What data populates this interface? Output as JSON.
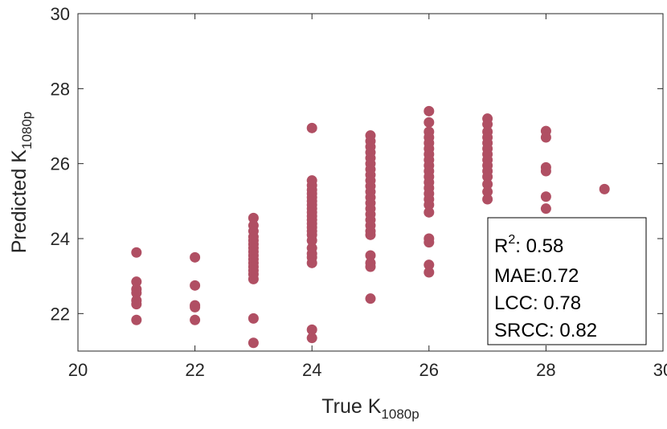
{
  "chart_data": {
    "type": "scatter",
    "xlabel": {
      "main": "True K",
      "sub": "1080p"
    },
    "ylabel": {
      "main": "Predicted K",
      "sub": "1080p"
    },
    "xlim": [
      20,
      30
    ],
    "ylim": [
      21,
      30
    ],
    "xticks": [
      "20",
      "22",
      "24",
      "26",
      "28",
      "30"
    ],
    "yticks": [
      "22",
      "24",
      "26",
      "28",
      "30"
    ],
    "grid": false,
    "marker_color": "#b04f63",
    "stats": {
      "r2_prefix": "R",
      "r2_sup": "2",
      "r2_value": ": 0.58",
      "mae": "MAE:0.72",
      "lcc": "LCC: 0.78",
      "srcc": "SRCC: 0.82"
    },
    "points": [
      [
        21,
        23.63
      ],
      [
        21,
        22.85
      ],
      [
        21,
        22.65
      ],
      [
        21,
        22.55
      ],
      [
        21,
        22.35
      ],
      [
        21,
        22.25
      ],
      [
        21,
        21.83
      ],
      [
        22,
        23.5
      ],
      [
        22,
        22.75
      ],
      [
        22,
        22.22
      ],
      [
        22,
        22.17
      ],
      [
        22,
        21.83
      ],
      [
        23,
        24.55
      ],
      [
        23,
        24.35
      ],
      [
        23,
        24.2
      ],
      [
        23,
        24.05
      ],
      [
        23,
        23.95
      ],
      [
        23,
        23.85
      ],
      [
        23,
        23.75
      ],
      [
        23,
        23.65
      ],
      [
        23,
        23.55
      ],
      [
        23,
        23.45
      ],
      [
        23,
        23.35
      ],
      [
        23,
        23.25
      ],
      [
        23,
        23.15
      ],
      [
        23,
        23.05
      ],
      [
        23,
        22.92
      ],
      [
        23,
        21.87
      ],
      [
        23,
        21.22
      ],
      [
        24,
        26.95
      ],
      [
        24,
        25.55
      ],
      [
        24,
        25.42
      ],
      [
        24,
        25.3
      ],
      [
        24,
        25.2
      ],
      [
        24,
        25.1
      ],
      [
        24,
        25.0
      ],
      [
        24,
        24.9
      ],
      [
        24,
        24.8
      ],
      [
        24,
        24.7
      ],
      [
        24,
        24.6
      ],
      [
        24,
        24.5
      ],
      [
        24,
        24.4
      ],
      [
        24,
        24.3
      ],
      [
        24,
        24.2
      ],
      [
        24,
        24.1
      ],
      [
        24,
        23.95
      ],
      [
        24,
        23.75
      ],
      [
        24,
        23.6
      ],
      [
        24,
        23.5
      ],
      [
        24,
        23.35
      ],
      [
        24,
        21.57
      ],
      [
        24,
        21.35
      ],
      [
        25,
        26.75
      ],
      [
        25,
        26.6
      ],
      [
        25,
        26.45
      ],
      [
        25,
        26.3
      ],
      [
        25,
        26.15
      ],
      [
        25,
        26.0
      ],
      [
        25,
        25.85
      ],
      [
        25,
        25.7
      ],
      [
        25,
        25.55
      ],
      [
        25,
        25.4
      ],
      [
        25,
        25.25
      ],
      [
        25,
        25.1
      ],
      [
        25,
        24.95
      ],
      [
        25,
        24.8
      ],
      [
        25,
        24.65
      ],
      [
        25,
        24.5
      ],
      [
        25,
        24.35
      ],
      [
        25,
        24.2
      ],
      [
        25,
        24.1
      ],
      [
        25,
        23.55
      ],
      [
        25,
        23.35
      ],
      [
        25,
        23.25
      ],
      [
        25,
        22.4
      ],
      [
        26,
        27.4
      ],
      [
        26,
        27.1
      ],
      [
        26,
        26.85
      ],
      [
        26,
        26.7
      ],
      [
        26,
        26.55
      ],
      [
        26,
        26.4
      ],
      [
        26,
        26.25
      ],
      [
        26,
        26.1
      ],
      [
        26,
        25.95
      ],
      [
        26,
        25.8
      ],
      [
        26,
        25.65
      ],
      [
        26,
        25.5
      ],
      [
        26,
        25.35
      ],
      [
        26,
        25.2
      ],
      [
        26,
        25.05
      ],
      [
        26,
        24.9
      ],
      [
        26,
        24.7
      ],
      [
        26,
        24.0
      ],
      [
        26,
        23.9
      ],
      [
        26,
        23.3
      ],
      [
        26,
        23.1
      ],
      [
        27,
        27.2
      ],
      [
        27,
        27.05
      ],
      [
        27,
        26.85
      ],
      [
        27,
        26.7
      ],
      [
        27,
        26.55
      ],
      [
        27,
        26.4
      ],
      [
        27,
        26.25
      ],
      [
        27,
        26.1
      ],
      [
        27,
        25.95
      ],
      [
        27,
        25.8
      ],
      [
        27,
        25.65
      ],
      [
        27,
        25.45
      ],
      [
        27,
        25.25
      ],
      [
        27,
        25.05
      ],
      [
        28,
        26.87
      ],
      [
        28,
        26.7
      ],
      [
        28,
        25.9
      ],
      [
        28,
        25.8
      ],
      [
        28,
        25.12
      ],
      [
        28,
        24.8
      ],
      [
        29,
        25.32
      ]
    ]
  }
}
